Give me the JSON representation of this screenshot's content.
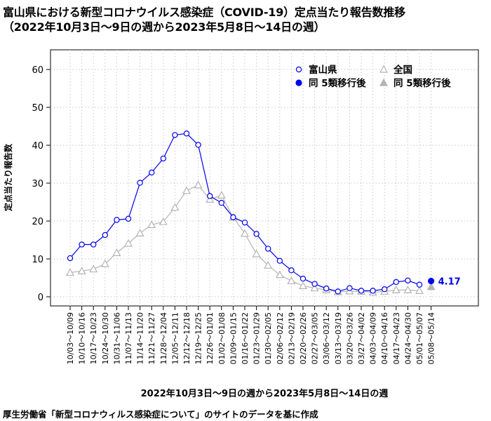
{
  "title_line1": "富山県における新型コロナウイルス感染症（COVID-19）定点当たり報告数推移",
  "title_line2": "（2022年10月3日～9日の週から2023年5月8日～14日の週）",
  "source_note": "厚生労働省「新型コロナウィルス感染症について」のサイトのデータを基に作成",
  "chart_data": {
    "type": "line",
    "xlabel": "2022年10月3日～9日の週から2023年5月8日～14日の週",
    "ylabel": "定点当たり報告数",
    "ylim": [
      0,
      60
    ],
    "yticks": [
      0,
      10,
      20,
      30,
      40,
      50,
      60
    ],
    "grid": true,
    "legend_position": "top-right",
    "categories": [
      "10/03～10/09",
      "10/10～10/16",
      "10/17～10/23",
      "10/24～10/30",
      "10/31～11/06",
      "11/07～11/13",
      "11/14～11/20",
      "11/21～11/27",
      "11/28～12/04",
      "12/05～12/11",
      "12/12～12/18",
      "12/19～12/25",
      "12/26～01/01",
      "01/02～01/08",
      "01/09～01/15",
      "01/16～01/22",
      "01/23～01/29",
      "01/30～02/05",
      "02/06～02/12",
      "02/13～02/19",
      "02/20～02/26",
      "02/27～03/05",
      "03/06～03/12",
      "03/13～03/19",
      "03/20～03/26",
      "03/27～04/02",
      "04/03～04/09",
      "04/10～04/16",
      "04/17～04/23",
      "04/24～04/30",
      "05/01～05/07",
      "05/08～05/14"
    ],
    "series": [
      {
        "name": "富山県",
        "color": "#0000ee",
        "marker": "open-circle",
        "values": [
          10.2,
          13.8,
          13.8,
          16.3,
          20.3,
          20.6,
          30.1,
          32.8,
          36.5,
          42.7,
          43.1,
          40.1,
          26.6,
          24.8,
          21.0,
          19.6,
          16.6,
          12.7,
          9.5,
          7.0,
          4.8,
          3.4,
          2.2,
          1.4,
          2.3,
          1.6,
          1.6,
          2.0,
          3.9,
          4.3,
          3.2,
          null
        ]
      },
      {
        "name": "同 5類移行後",
        "color": "#0000ee",
        "marker": "filled-circle",
        "values": [
          null,
          null,
          null,
          null,
          null,
          null,
          null,
          null,
          null,
          null,
          null,
          null,
          null,
          null,
          null,
          null,
          null,
          null,
          null,
          null,
          null,
          null,
          null,
          null,
          null,
          null,
          null,
          null,
          null,
          null,
          null,
          4.17
        ]
      },
      {
        "name": "全国",
        "color": "#b4b4b4",
        "marker": "open-triangle",
        "values": [
          6.4,
          6.8,
          7.3,
          8.7,
          11.6,
          14.1,
          16.8,
          19.0,
          19.8,
          23.6,
          28.0,
          29.5,
          25.7,
          26.8,
          21.0,
          16.7,
          11.3,
          8.3,
          5.8,
          4.2,
          2.9,
          2.3,
          1.8,
          1.3,
          1.5,
          1.4,
          1.2,
          1.4,
          1.8,
          1.8,
          1.6,
          null
        ]
      },
      {
        "name": "同 5類移行後",
        "color": "#b4b4b4",
        "marker": "filled-triangle",
        "values": [
          null,
          null,
          null,
          null,
          null,
          null,
          null,
          null,
          null,
          null,
          null,
          null,
          null,
          null,
          null,
          null,
          null,
          null,
          null,
          null,
          null,
          null,
          null,
          null,
          null,
          null,
          null,
          null,
          null,
          null,
          null,
          2.63
        ]
      }
    ],
    "annotations": [
      {
        "category": "05/08～05/14",
        "text": "4.17",
        "color": "#0000ee"
      }
    ]
  }
}
